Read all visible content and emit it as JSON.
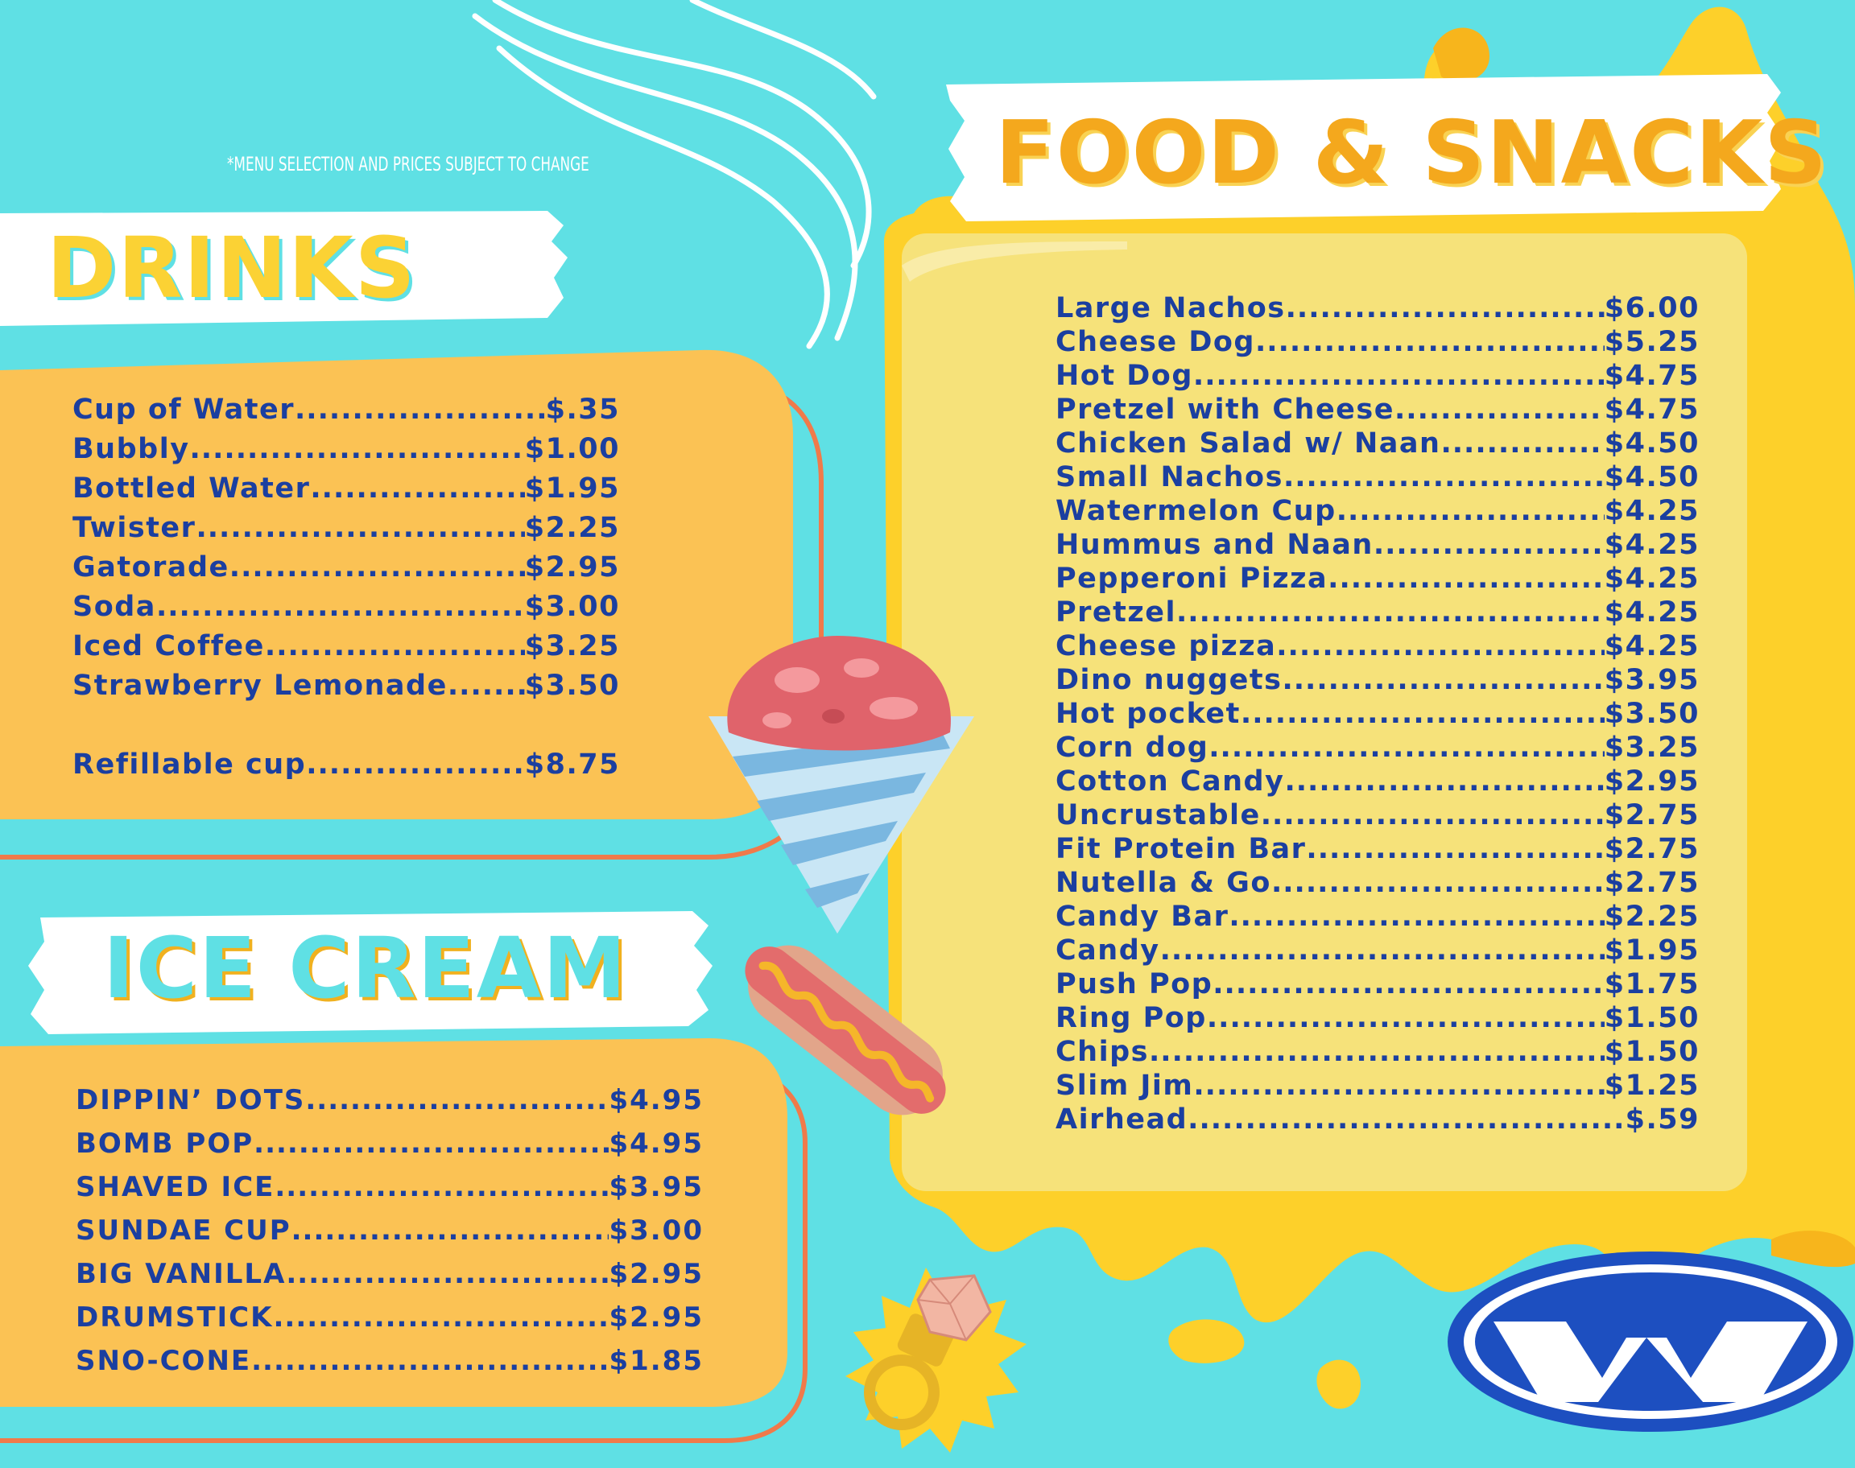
{
  "disclaimer": "*MENU SELECTION AND PRICES SUBJECT TO CHANGE",
  "sections": {
    "drinks": {
      "title": "DRINKS",
      "items": [
        {
          "name": "Cup of Water",
          "price": "$.35"
        },
        {
          "name": "Bubbly",
          "price": "$1.00"
        },
        {
          "name": "Bottled Water",
          "price": "$1.95"
        },
        {
          "name": "Twister",
          "price": "$2.25"
        },
        {
          "name": "Gatorade",
          "price": "$2.95"
        },
        {
          "name": "Soda",
          "price": "$3.00"
        },
        {
          "name": "Iced Coffee",
          "price": "$3.25"
        },
        {
          "name": "Strawberry Lemonade",
          "price": "$3.50"
        }
      ],
      "extra_item": {
        "name": "Refillable cup",
        "price": "$8.75"
      }
    },
    "ice_cream": {
      "title": "ICE CREAM",
      "items": [
        {
          "name": "DIPPIN’ DOTS",
          "price": "$4.95"
        },
        {
          "name": "BOMB POP",
          "price": "$4.95"
        },
        {
          "name": "SHAVED ICE",
          "price": "$3.95"
        },
        {
          "name": "SUNDAE CUP",
          "price": "$3.00"
        },
        {
          "name": "BIG VANILLA",
          "price": "$2.95"
        },
        {
          "name": "DRUMSTICK",
          "price": "$2.95"
        },
        {
          "name": "SNO-CONE",
          "price": "$1.85"
        }
      ]
    },
    "food": {
      "title": "FOOD & SNACKS",
      "items": [
        {
          "name": "Large Nachos",
          "price": "$6.00"
        },
        {
          "name": "Cheese Dog",
          "price": "$5.25"
        },
        {
          "name": "Hot Dog",
          "price": "$4.75"
        },
        {
          "name": "Pretzel with Cheese",
          "price": "$4.75"
        },
        {
          "name": "Chicken Salad w/ Naan",
          "price": "$4.50"
        },
        {
          "name": "Small Nachos",
          "price": "$4.50"
        },
        {
          "name": "Watermelon Cup",
          "price": "$4.25"
        },
        {
          "name": "Hummus and Naan",
          "price": "$4.25"
        },
        {
          "name": "Pepperoni Pizza",
          "price": "$4.25"
        },
        {
          "name": "Pretzel",
          "price": "$4.25"
        },
        {
          "name": "Cheese pizza",
          "price": "$4.25"
        },
        {
          "name": "Dino nuggets",
          "price": "$3.95"
        },
        {
          "name": "Hot pocket",
          "price": "$3.50"
        },
        {
          "name": "Corn dog",
          "price": "$3.25"
        },
        {
          "name": "Cotton Candy",
          "price": "$2.95"
        },
        {
          "name": "Uncrustable",
          "price": "$2.75"
        },
        {
          "name": "Fit Protein Bar",
          "price": "$2.75"
        },
        {
          "name": "Nutella & Go",
          "price": "$2.75"
        },
        {
          "name": "Candy Bar",
          "price": "$2.25"
        },
        {
          "name": "Candy",
          "price": "$1.95"
        },
        {
          "name": "Push Pop",
          "price": "$1.75"
        },
        {
          "name": "Ring Pop",
          "price": "$1.50"
        },
        {
          "name": "Chips",
          "price": "$1.50"
        },
        {
          "name": "Slim Jim",
          "price": "$1.25"
        },
        {
          "name": "Airhead",
          "price": "$.59"
        }
      ]
    }
  },
  "colors": {
    "background": "#5fe0e4",
    "panel_orange": "#fbc254",
    "panel_outline": "#f07a4a",
    "food_panel": "#f6e27a",
    "food_splash": "#fdd02a",
    "text_blue": "#1b3fa0",
    "title_yellow": "#fbd234",
    "title_orange": "#f4a81d"
  },
  "illustrations": [
    "sno-cone-icon",
    "hot-dog-icon",
    "ring-pop-icon",
    "logo-w-icon"
  ]
}
